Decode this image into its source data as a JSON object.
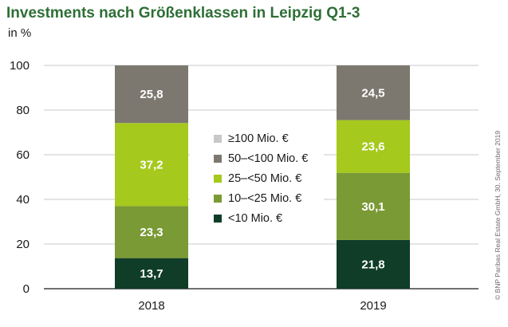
{
  "chart_data": {
    "type": "bar",
    "stacked": true,
    "title": "Investments nach Größenklassen in Leipzig Q1-3",
    "ylabel": "in %",
    "ylim": [
      0,
      100
    ],
    "yticks": [
      0,
      20,
      40,
      60,
      80,
      100
    ],
    "grid": true,
    "categories": [
      "2018",
      "2019"
    ],
    "series": [
      {
        "name": "<10 Mio. €",
        "color": "#0f3d28",
        "values": [
          13.7,
          21.8
        ],
        "labels": [
          "13,7",
          "21,8"
        ]
      },
      {
        "name": "10–<25 Mio. €",
        "color": "#7a9a35",
        "values": [
          23.3,
          30.1
        ],
        "labels": [
          "23,3",
          "30,1"
        ]
      },
      {
        "name": "25–<50 Mio. €",
        "color": "#a5c91c",
        "values": [
          37.2,
          23.6
        ],
        "labels": [
          "37,2",
          "23,6"
        ]
      },
      {
        "name": "50–<100 Mio. €",
        "color": "#7d786f",
        "values": [
          25.8,
          24.5
        ],
        "labels": [
          "25,8",
          "24,5"
        ]
      },
      {
        "name": "≥100 Mio. €",
        "color": "#c8c8c8",
        "values": [
          0,
          0
        ],
        "labels": [
          "",
          ""
        ]
      }
    ],
    "legend_order": [
      4,
      3,
      2,
      1,
      0
    ],
    "legend_position": "center"
  },
  "copyright": "© BNP Paribas Real Estate GmbH, 30. September 2019"
}
